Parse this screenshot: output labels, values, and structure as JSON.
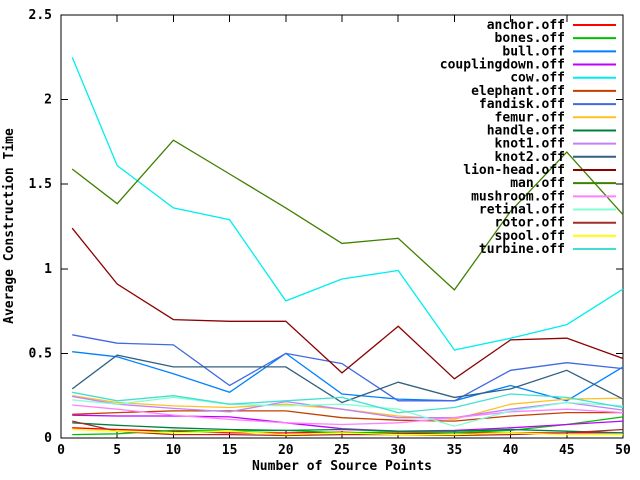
{
  "chart_data": {
    "type": "line",
    "title": "",
    "xlabel": "Number of Source Points",
    "ylabel": "Average Construction Time",
    "xlim": [
      0,
      50
    ],
    "ylim": [
      0,
      2.5
    ],
    "xticks": [
      0,
      5,
      10,
      15,
      20,
      25,
      30,
      35,
      40,
      45,
      50
    ],
    "yticks": [
      0,
      0.5,
      1,
      1.5,
      2,
      2.5
    ],
    "ytick_labels": [
      "0",
      "0.5",
      "1",
      "1.5",
      "2",
      "2.5"
    ],
    "grid": false,
    "legend_location": "top-right-inside",
    "background_color": "#ffffff",
    "axis_color": "#000000",
    "text_color": "#000000",
    "x": [
      1,
      5,
      10,
      15,
      20,
      25,
      30,
      35,
      40,
      45,
      50
    ],
    "series": [
      {
        "name": "anchor.off",
        "color": "#ff0000",
        "values": [
          0.06,
          0.05,
          0.04,
          0.03,
          0.03,
          0.035,
          0.025,
          0.03,
          0.03,
          0.03,
          0.03
        ]
      },
      {
        "name": "bones.off",
        "color": "#00c000",
        "values": [
          0.02,
          0.025,
          0.045,
          0.04,
          0.045,
          0.03,
          0.035,
          0.03,
          0.045,
          0.08,
          0.125
        ]
      },
      {
        "name": "bull.off",
        "color": "#0080ff",
        "values": [
          0.51,
          0.48,
          0.38,
          0.27,
          0.5,
          0.26,
          0.23,
          0.22,
          0.31,
          0.22,
          0.42
        ]
      },
      {
        "name": "couplingdown.off",
        "color": "#c000ff",
        "values": [
          0.135,
          0.13,
          0.13,
          0.125,
          0.09,
          0.055,
          0.04,
          0.045,
          0.06,
          0.08,
          0.1
        ]
      },
      {
        "name": "cow.off",
        "color": "#00eeee",
        "values": [
          2.25,
          1.61,
          1.36,
          1.29,
          0.81,
          0.94,
          0.99,
          0.52,
          0.59,
          0.67,
          0.88
        ]
      },
      {
        "name": "elephant.off",
        "color": "#c04000",
        "values": [
          0.14,
          0.15,
          0.16,
          0.16,
          0.16,
          0.12,
          0.105,
          0.1,
          0.13,
          0.15,
          0.15
        ]
      },
      {
        "name": "fandisk.off",
        "color": "#4169e1",
        "values": [
          0.61,
          0.56,
          0.55,
          0.31,
          0.5,
          0.44,
          0.22,
          0.22,
          0.4,
          0.445,
          0.41
        ]
      },
      {
        "name": "femur.off",
        "color": "#ffc020",
        "values": [
          0.25,
          0.21,
          0.19,
          0.18,
          0.2,
          0.17,
          0.13,
          0.11,
          0.2,
          0.23,
          0.235
        ]
      },
      {
        "name": "handle.off",
        "color": "#008040",
        "values": [
          0.09,
          0.075,
          0.06,
          0.05,
          0.045,
          0.05,
          0.04,
          0.04,
          0.05,
          0.04,
          0.03
        ]
      },
      {
        "name": "knot1.off",
        "color": "#c080ff",
        "values": [
          0.245,
          0.2,
          0.175,
          0.155,
          0.215,
          0.17,
          0.12,
          0.12,
          0.17,
          0.21,
          0.165
        ]
      },
      {
        "name": "knot2.off",
        "color": "#306080",
        "values": [
          0.29,
          0.49,
          0.42,
          0.42,
          0.42,
          0.21,
          0.33,
          0.24,
          0.29,
          0.4,
          0.23
        ]
      },
      {
        "name": "lion-head.off",
        "color": "#8b0000",
        "values": [
          1.24,
          0.91,
          0.7,
          0.69,
          0.69,
          0.385,
          0.66,
          0.35,
          0.58,
          0.59,
          0.47
        ]
      },
      {
        "name": "man.off",
        "color": "#408000",
        "values": [
          1.59,
          1.385,
          1.76,
          1.56,
          1.36,
          1.15,
          1.18,
          0.875,
          1.34,
          1.69,
          1.32
        ]
      },
      {
        "name": "mushroom.off",
        "color": "#ff80ff",
        "values": [
          0.195,
          0.17,
          0.135,
          0.11,
          0.09,
          0.08,
          0.09,
          0.12,
          0.155,
          0.17,
          0.15
        ]
      },
      {
        "name": "retinal.off",
        "color": "#7fffd4",
        "values": [
          0.225,
          0.2,
          0.24,
          0.2,
          0.19,
          0.2,
          0.17,
          0.07,
          0.16,
          0.21,
          0.19
        ]
      },
      {
        "name": "rotor.off",
        "color": "#a52a2a",
        "values": [
          0.1,
          0.04,
          0.02,
          0.02,
          0.015,
          0.02,
          0.02,
          0.015,
          0.02,
          0.03,
          0.05
        ]
      },
      {
        "name": "spool.off",
        "color": "#ffff00",
        "values": [
          0.05,
          0.04,
          0.03,
          0.04,
          0.02,
          0.03,
          0.02,
          0.02,
          0.03,
          0.02,
          0.02
        ]
      },
      {
        "name": "turbine.off",
        "color": "#40e0d0",
        "values": [
          0.27,
          0.22,
          0.25,
          0.2,
          0.22,
          0.24,
          0.15,
          0.18,
          0.26,
          0.24,
          0.18
        ]
      }
    ]
  }
}
